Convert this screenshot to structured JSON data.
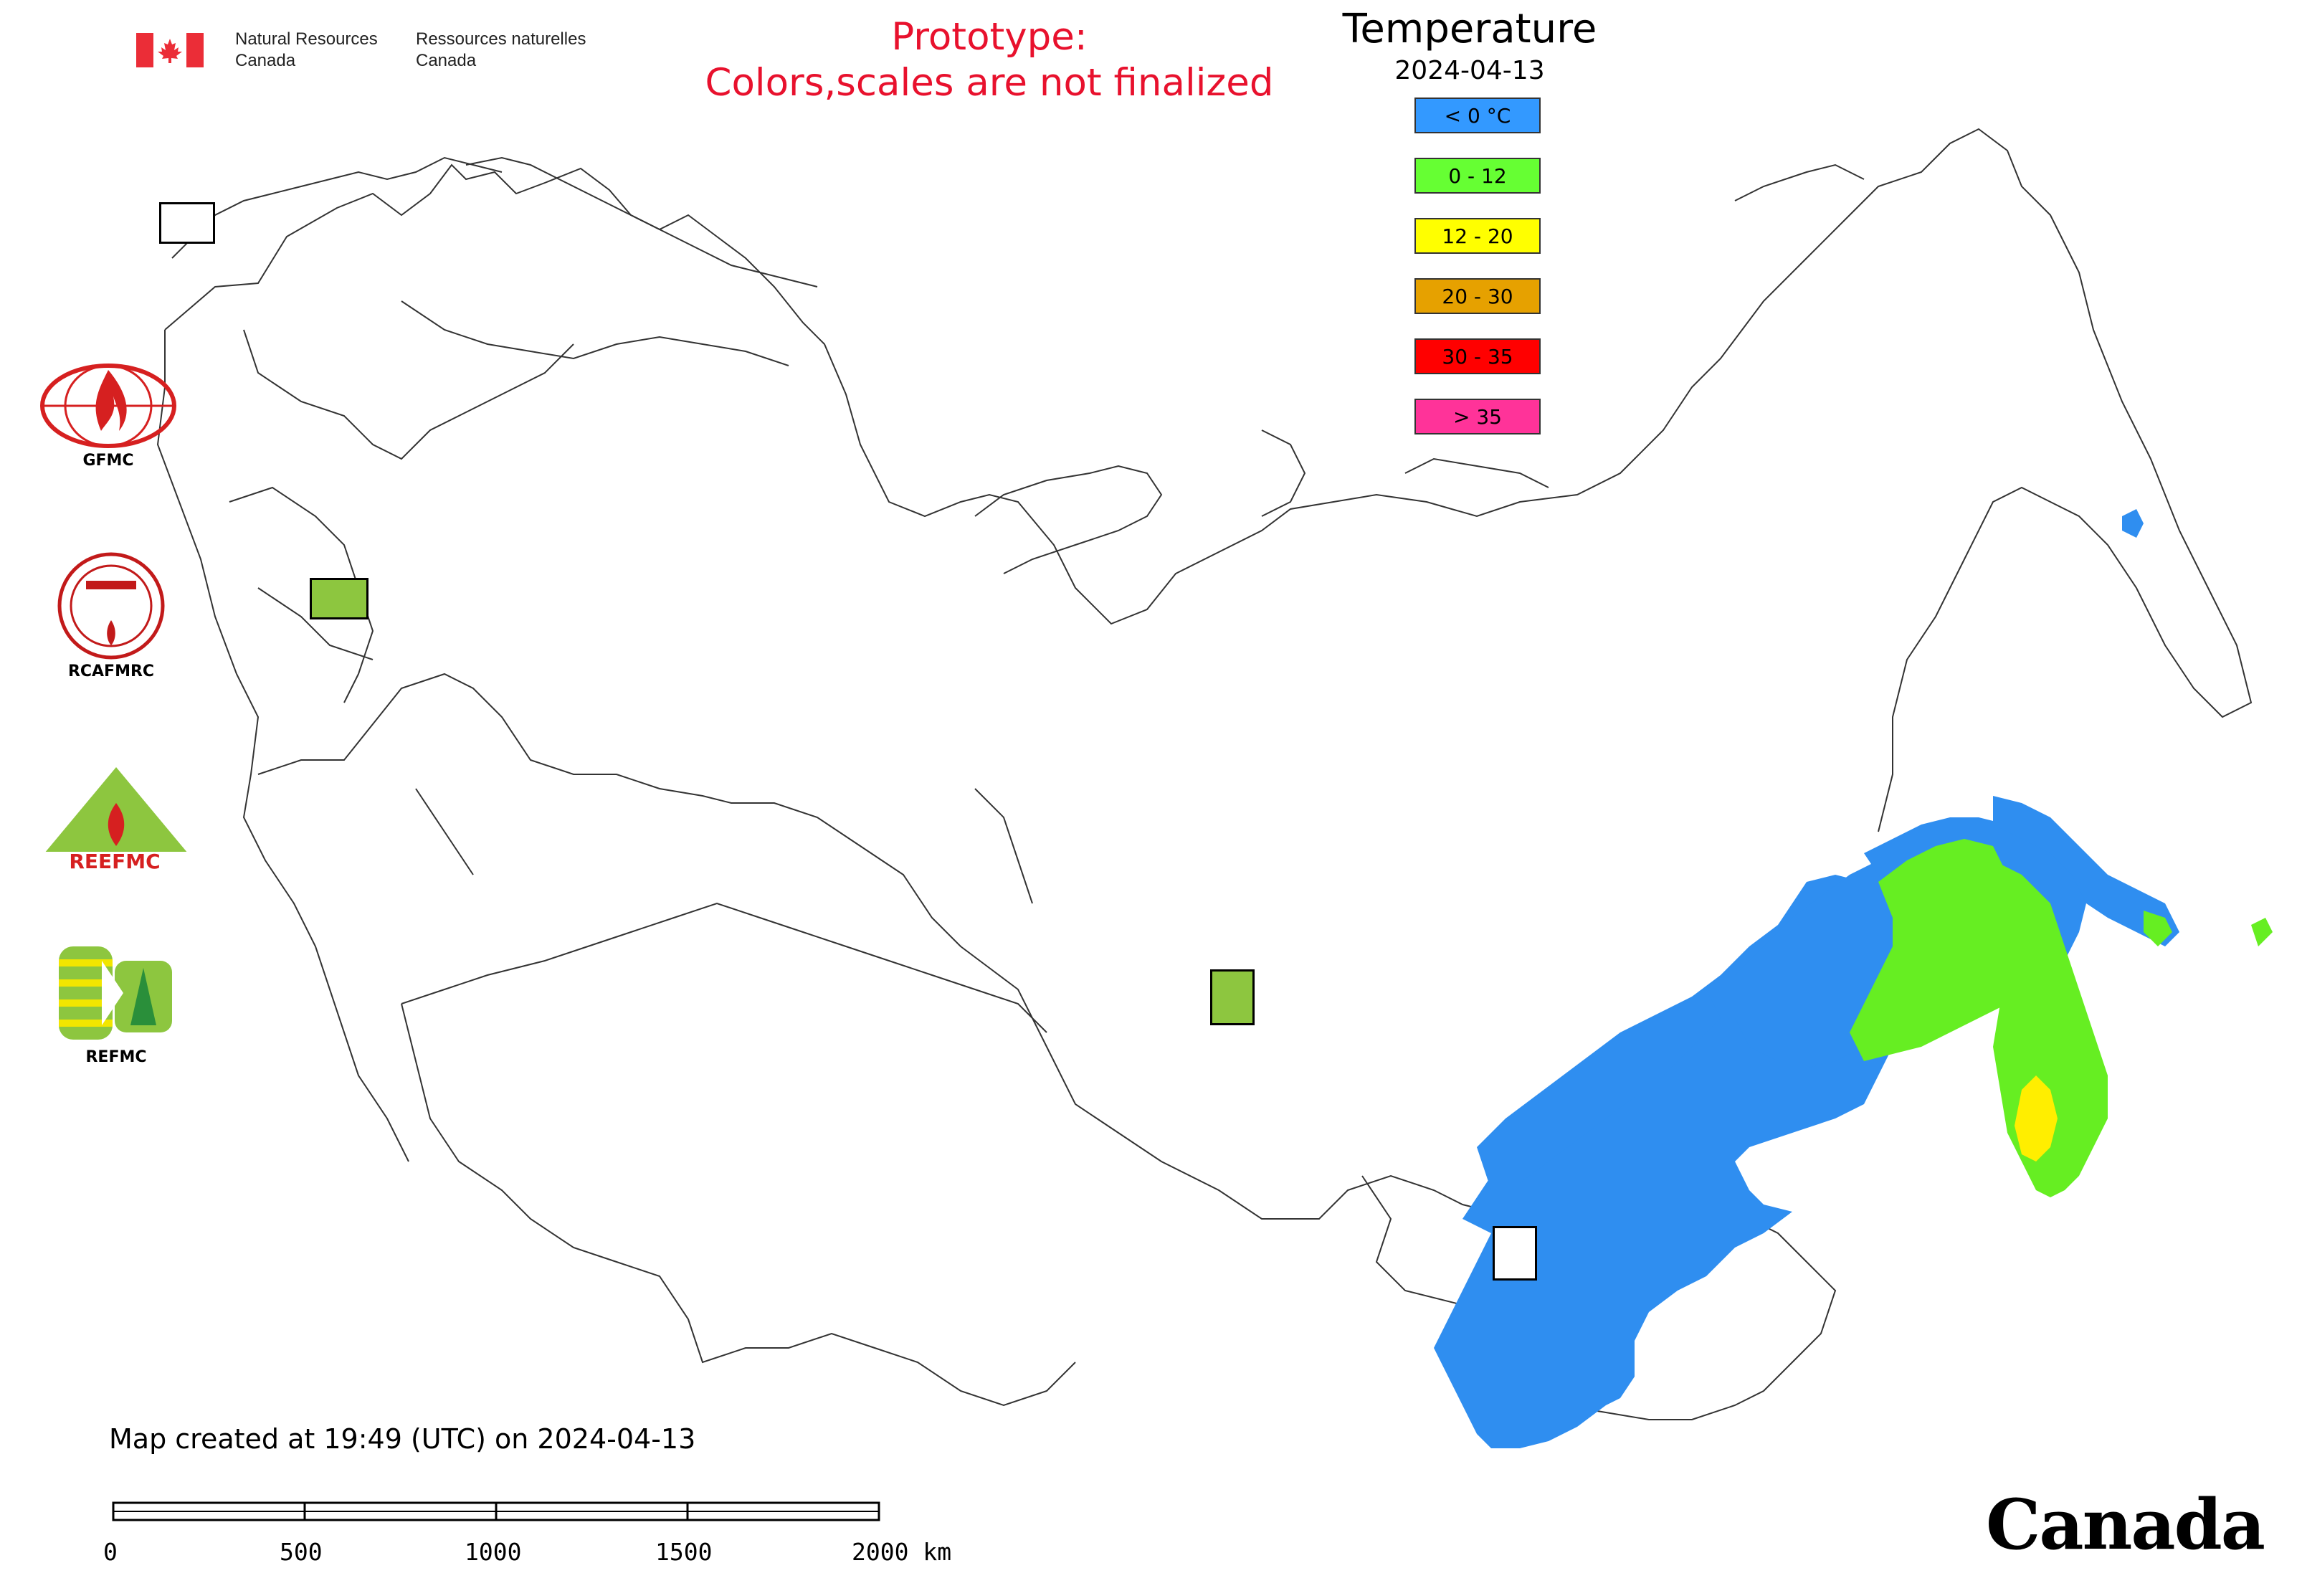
{
  "header": {
    "org_en_line1": "Natural Resources",
    "org_en_line2": "Canada",
    "org_fr_line1": "Ressources naturelles",
    "org_fr_line2": "Canada",
    "prototype_line1": "Prototype:",
    "prototype_line2": "Colors,scales are not finalized"
  },
  "legend": {
    "title": "Temperature",
    "date": "2024-04-13",
    "items": [
      {
        "label": "< 0 °C",
        "color": "#3399ff"
      },
      {
        "label": "0 - 12",
        "color": "#66ff33"
      },
      {
        "label": "12 - 20",
        "color": "#ffff00"
      },
      {
        "label": "20 - 30",
        "color": "#e6a100"
      },
      {
        "label": "30 - 35",
        "color": "#ff0000"
      },
      {
        "label": "> 35",
        "color": "#ff3399"
      }
    ]
  },
  "logos": [
    {
      "name": "GFMC",
      "label": "GFMC"
    },
    {
      "name": "RCAFMRC",
      "label": "RCAFMRC"
    },
    {
      "name": "REEFMC",
      "label": "REEFMC"
    },
    {
      "name": "REFMC",
      "label": "REFMC"
    }
  ],
  "footer": {
    "created": "Map created at 19:49 (UTC) on 2024-04-13",
    "scale_labels": [
      "0",
      "500",
      "1000",
      "1500",
      "2000 km"
    ],
    "canada_wordmark": "Canada"
  },
  "map_colors": {
    "cold": "#2f8ef0",
    "mild": "#66ee22",
    "warm": "#ffee00",
    "border": "#333333"
  },
  "icons": [
    "canada-flag-icon",
    "gfmc-logo-icon",
    "rcafmrc-logo-icon",
    "reefmc-logo-icon",
    "refmc-logo-icon"
  ]
}
